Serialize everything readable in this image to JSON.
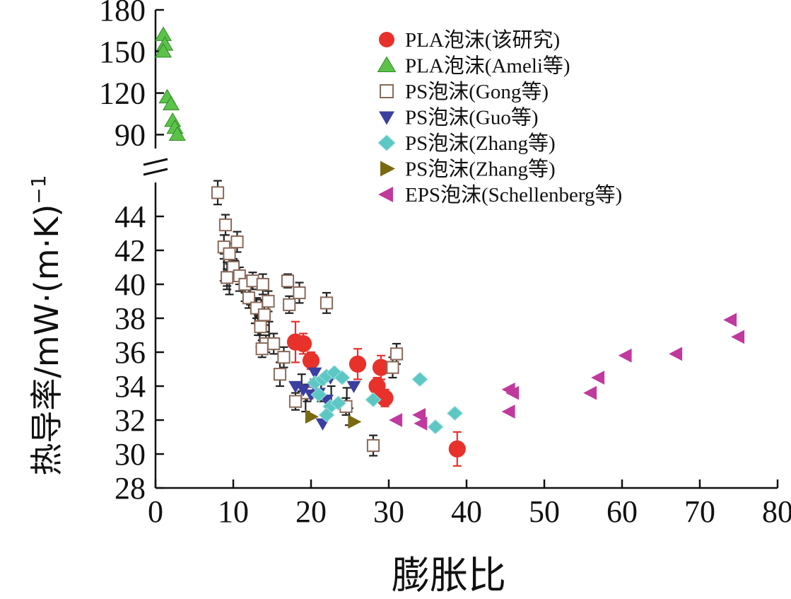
{
  "chart_data": {
    "type": "scatter",
    "xlabel": "膨胀比",
    "ylabel": "热导率/mW·(m·K)",
    "ylabel_superscript": "−1",
    "xlim": [
      0,
      80
    ],
    "x_ticks": [
      0,
      10,
      20,
      30,
      40,
      50,
      60,
      70,
      80
    ],
    "y_lower_range": [
      28,
      46
    ],
    "y_lower_ticks": [
      28,
      30,
      32,
      34,
      36,
      38,
      40,
      42,
      44
    ],
    "y_upper_range": [
      80,
      180
    ],
    "y_upper_ticks": [
      90,
      120,
      150,
      180
    ],
    "axis_break": true,
    "legend_position": "top-right",
    "grid": false,
    "series": [
      {
        "name": "PLA泡沫(该研究)",
        "marker": "circle",
        "color": "#e8312a",
        "points": [
          {
            "x": 18.0,
            "y": 36.6,
            "err": 1.2
          },
          {
            "x": 19.0,
            "y": 36.5,
            "err": 0.6
          },
          {
            "x": 20.0,
            "y": 35.5,
            "err": 0.5
          },
          {
            "x": 26.0,
            "y": 35.3,
            "err": 0.9
          },
          {
            "x": 28.5,
            "y": 34.0,
            "err": 0.5
          },
          {
            "x": 29.0,
            "y": 35.1,
            "err": 0.7
          },
          {
            "x": 29.5,
            "y": 33.3,
            "err": 0.5
          },
          {
            "x": 38.8,
            "y": 30.3,
            "err": 1.0
          }
        ]
      },
      {
        "name": "PLA泡沫(Ameli等)",
        "marker": "triangle-up",
        "color": "#5cc24a",
        "points": [
          {
            "x": 1.0,
            "y": 162
          },
          {
            "x": 1.2,
            "y": 155
          },
          {
            "x": 1.0,
            "y": 150
          },
          {
            "x": 1.5,
            "y": 117
          },
          {
            "x": 2.0,
            "y": 112
          },
          {
            "x": 2.2,
            "y": 100
          },
          {
            "x": 2.5,
            "y": 95
          },
          {
            "x": 2.8,
            "y": 90
          }
        ]
      },
      {
        "name": "PS泡沫(Gong等)",
        "marker": "square-open",
        "color": "#8a6a5a",
        "points": [
          {
            "x": 8.0,
            "y": 45.4,
            "err": 0.7
          },
          {
            "x": 9.0,
            "y": 43.5,
            "err": 0.6
          },
          {
            "x": 8.8,
            "y": 42.2,
            "err": 0.7
          },
          {
            "x": 9.5,
            "y": 41.8,
            "err": 0.6
          },
          {
            "x": 10.5,
            "y": 42.5,
            "err": 0.6
          },
          {
            "x": 10.0,
            "y": 41.0,
            "err": 0.5
          },
          {
            "x": 9.2,
            "y": 40.4,
            "err": 0.5
          },
          {
            "x": 10.8,
            "y": 40.5,
            "err": 0.5
          },
          {
            "x": 11.5,
            "y": 40.0,
            "err": 0.5
          },
          {
            "x": 12.0,
            "y": 39.2,
            "err": 0.6
          },
          {
            "x": 12.5,
            "y": 40.2,
            "err": 0.5
          },
          {
            "x": 13.0,
            "y": 38.6,
            "err": 0.6
          },
          {
            "x": 13.8,
            "y": 40.0,
            "err": 0.6
          },
          {
            "x": 14.0,
            "y": 38.2,
            "err": 0.6
          },
          {
            "x": 14.5,
            "y": 39.0,
            "err": 0.6
          },
          {
            "x": 13.5,
            "y": 37.5,
            "err": 0.5
          },
          {
            "x": 14.2,
            "y": 36.5,
            "err": 0.5
          },
          {
            "x": 13.7,
            "y": 36.2,
            "err": 0.5
          },
          {
            "x": 15.2,
            "y": 36.5,
            "err": 0.6
          },
          {
            "x": 16.0,
            "y": 34.7,
            "err": 0.7
          },
          {
            "x": 16.5,
            "y": 35.7,
            "err": 0.6
          },
          {
            "x": 17.0,
            "y": 40.2,
            "err": 0.4
          },
          {
            "x": 17.2,
            "y": 38.8,
            "err": 0.5
          },
          {
            "x": 18.5,
            "y": 39.5,
            "err": 0.6
          },
          {
            "x": 18.0,
            "y": 33.1,
            "err": 0.5
          },
          {
            "x": 19.5,
            "y": 33.6,
            "err": 0.5
          },
          {
            "x": 22.0,
            "y": 38.9,
            "err": 0.6
          },
          {
            "x": 24.5,
            "y": 32.8,
            "err": 0.5
          },
          {
            "x": 28.0,
            "y": 30.5,
            "err": 0.6
          },
          {
            "x": 30.5,
            "y": 35.1,
            "err": 0.6
          },
          {
            "x": 31.0,
            "y": 35.9,
            "err": 0.6
          }
        ]
      },
      {
        "name": "PS泡沫(Guo等)",
        "marker": "triangle-down",
        "color": "#3b3fa0",
        "points": [
          {
            "x": 18.0,
            "y": 34.0
          },
          {
            "x": 19.0,
            "y": 33.8
          },
          {
            "x": 20.0,
            "y": 33.5
          },
          {
            "x": 21.0,
            "y": 33.6
          },
          {
            "x": 21.5,
            "y": 31.8
          },
          {
            "x": 22.0,
            "y": 33.2
          },
          {
            "x": 22.5,
            "y": 34.5
          },
          {
            "x": 20.5,
            "y": 34.8
          },
          {
            "x": 25.5,
            "y": 34.0
          }
        ]
      },
      {
        "name": "PS泡沫(Zhang等)",
        "marker": "diamond",
        "color": "#5dc7c4",
        "points": [
          {
            "x": 20.5,
            "y": 34.2
          },
          {
            "x": 21.0,
            "y": 33.5
          },
          {
            "x": 21.5,
            "y": 34.4
          },
          {
            "x": 22.0,
            "y": 34.6
          },
          {
            "x": 22.5,
            "y": 32.8
          },
          {
            "x": 23.0,
            "y": 34.8
          },
          {
            "x": 23.5,
            "y": 33.0
          },
          {
            "x": 24.0,
            "y": 34.5
          },
          {
            "x": 22.0,
            "y": 32.3
          },
          {
            "x": 28.0,
            "y": 33.2
          },
          {
            "x": 34.0,
            "y": 34.4
          },
          {
            "x": 36.0,
            "y": 31.6
          },
          {
            "x": 38.5,
            "y": 32.4
          }
        ]
      },
      {
        "name": "PS泡沫(Zhang等)",
        "marker": "triangle-right",
        "color": "#7a6a10",
        "points": [
          {
            "x": 20.0,
            "y": 32.2
          },
          {
            "x": 25.5,
            "y": 31.9
          }
        ]
      },
      {
        "name": "EPS泡沫(Schellenberg等)",
        "marker": "triangle-left",
        "color": "#c0399d",
        "points": [
          {
            "x": 31.0,
            "y": 32.0
          },
          {
            "x": 34.0,
            "y": 32.3
          },
          {
            "x": 34.2,
            "y": 31.8
          },
          {
            "x": 45.5,
            "y": 33.8
          },
          {
            "x": 45.5,
            "y": 32.5
          },
          {
            "x": 46.0,
            "y": 33.6
          },
          {
            "x": 56.0,
            "y": 33.6
          },
          {
            "x": 57.0,
            "y": 34.5
          },
          {
            "x": 60.5,
            "y": 35.8
          },
          {
            "x": 67.0,
            "y": 35.9
          },
          {
            "x": 74.0,
            "y": 37.9
          },
          {
            "x": 75.0,
            "y": 36.9
          }
        ]
      }
    ],
    "black_errorbar_cluster": [
      {
        "x": 8.8,
        "y": 41.0,
        "err": 0.8
      },
      {
        "x": 9.2,
        "y": 40.5,
        "err": 0.8
      },
      {
        "x": 9.5,
        "y": 40.1,
        "err": 0.7
      },
      {
        "x": 10.2,
        "y": 40.8,
        "err": 0.6
      },
      {
        "x": 10.8,
        "y": 40.2,
        "err": 0.6
      },
      {
        "x": 11.5,
        "y": 39.6,
        "err": 0.6
      },
      {
        "x": 12.2,
        "y": 39.4,
        "err": 0.6
      },
      {
        "x": 12.8,
        "y": 38.4,
        "err": 0.7
      },
      {
        "x": 13.2,
        "y": 37.6,
        "err": 0.6
      },
      {
        "x": 13.6,
        "y": 38.5,
        "err": 0.6
      },
      {
        "x": 14.0,
        "y": 37.8,
        "err": 0.6
      },
      {
        "x": 13.4,
        "y": 36.9,
        "err": 0.6
      },
      {
        "x": 14.6,
        "y": 37.2,
        "err": 0.6
      },
      {
        "x": 18.8,
        "y": 34.2,
        "err": 0.5
      },
      {
        "x": 19.3,
        "y": 33.0,
        "err": 0.5
      },
      {
        "x": 20.4,
        "y": 33.9,
        "err": 0.5
      },
      {
        "x": 21.3,
        "y": 33.6,
        "err": 0.5
      },
      {
        "x": 22.6,
        "y": 33.4,
        "err": 0.6
      },
      {
        "x": 24.6,
        "y": 33.3,
        "err": 0.6
      },
      {
        "x": 24.9,
        "y": 32.2,
        "err": 0.5
      }
    ],
    "colors": {
      "axis": "#111111",
      "error_red": "#e8312a",
      "error_black": "#222222"
    }
  }
}
